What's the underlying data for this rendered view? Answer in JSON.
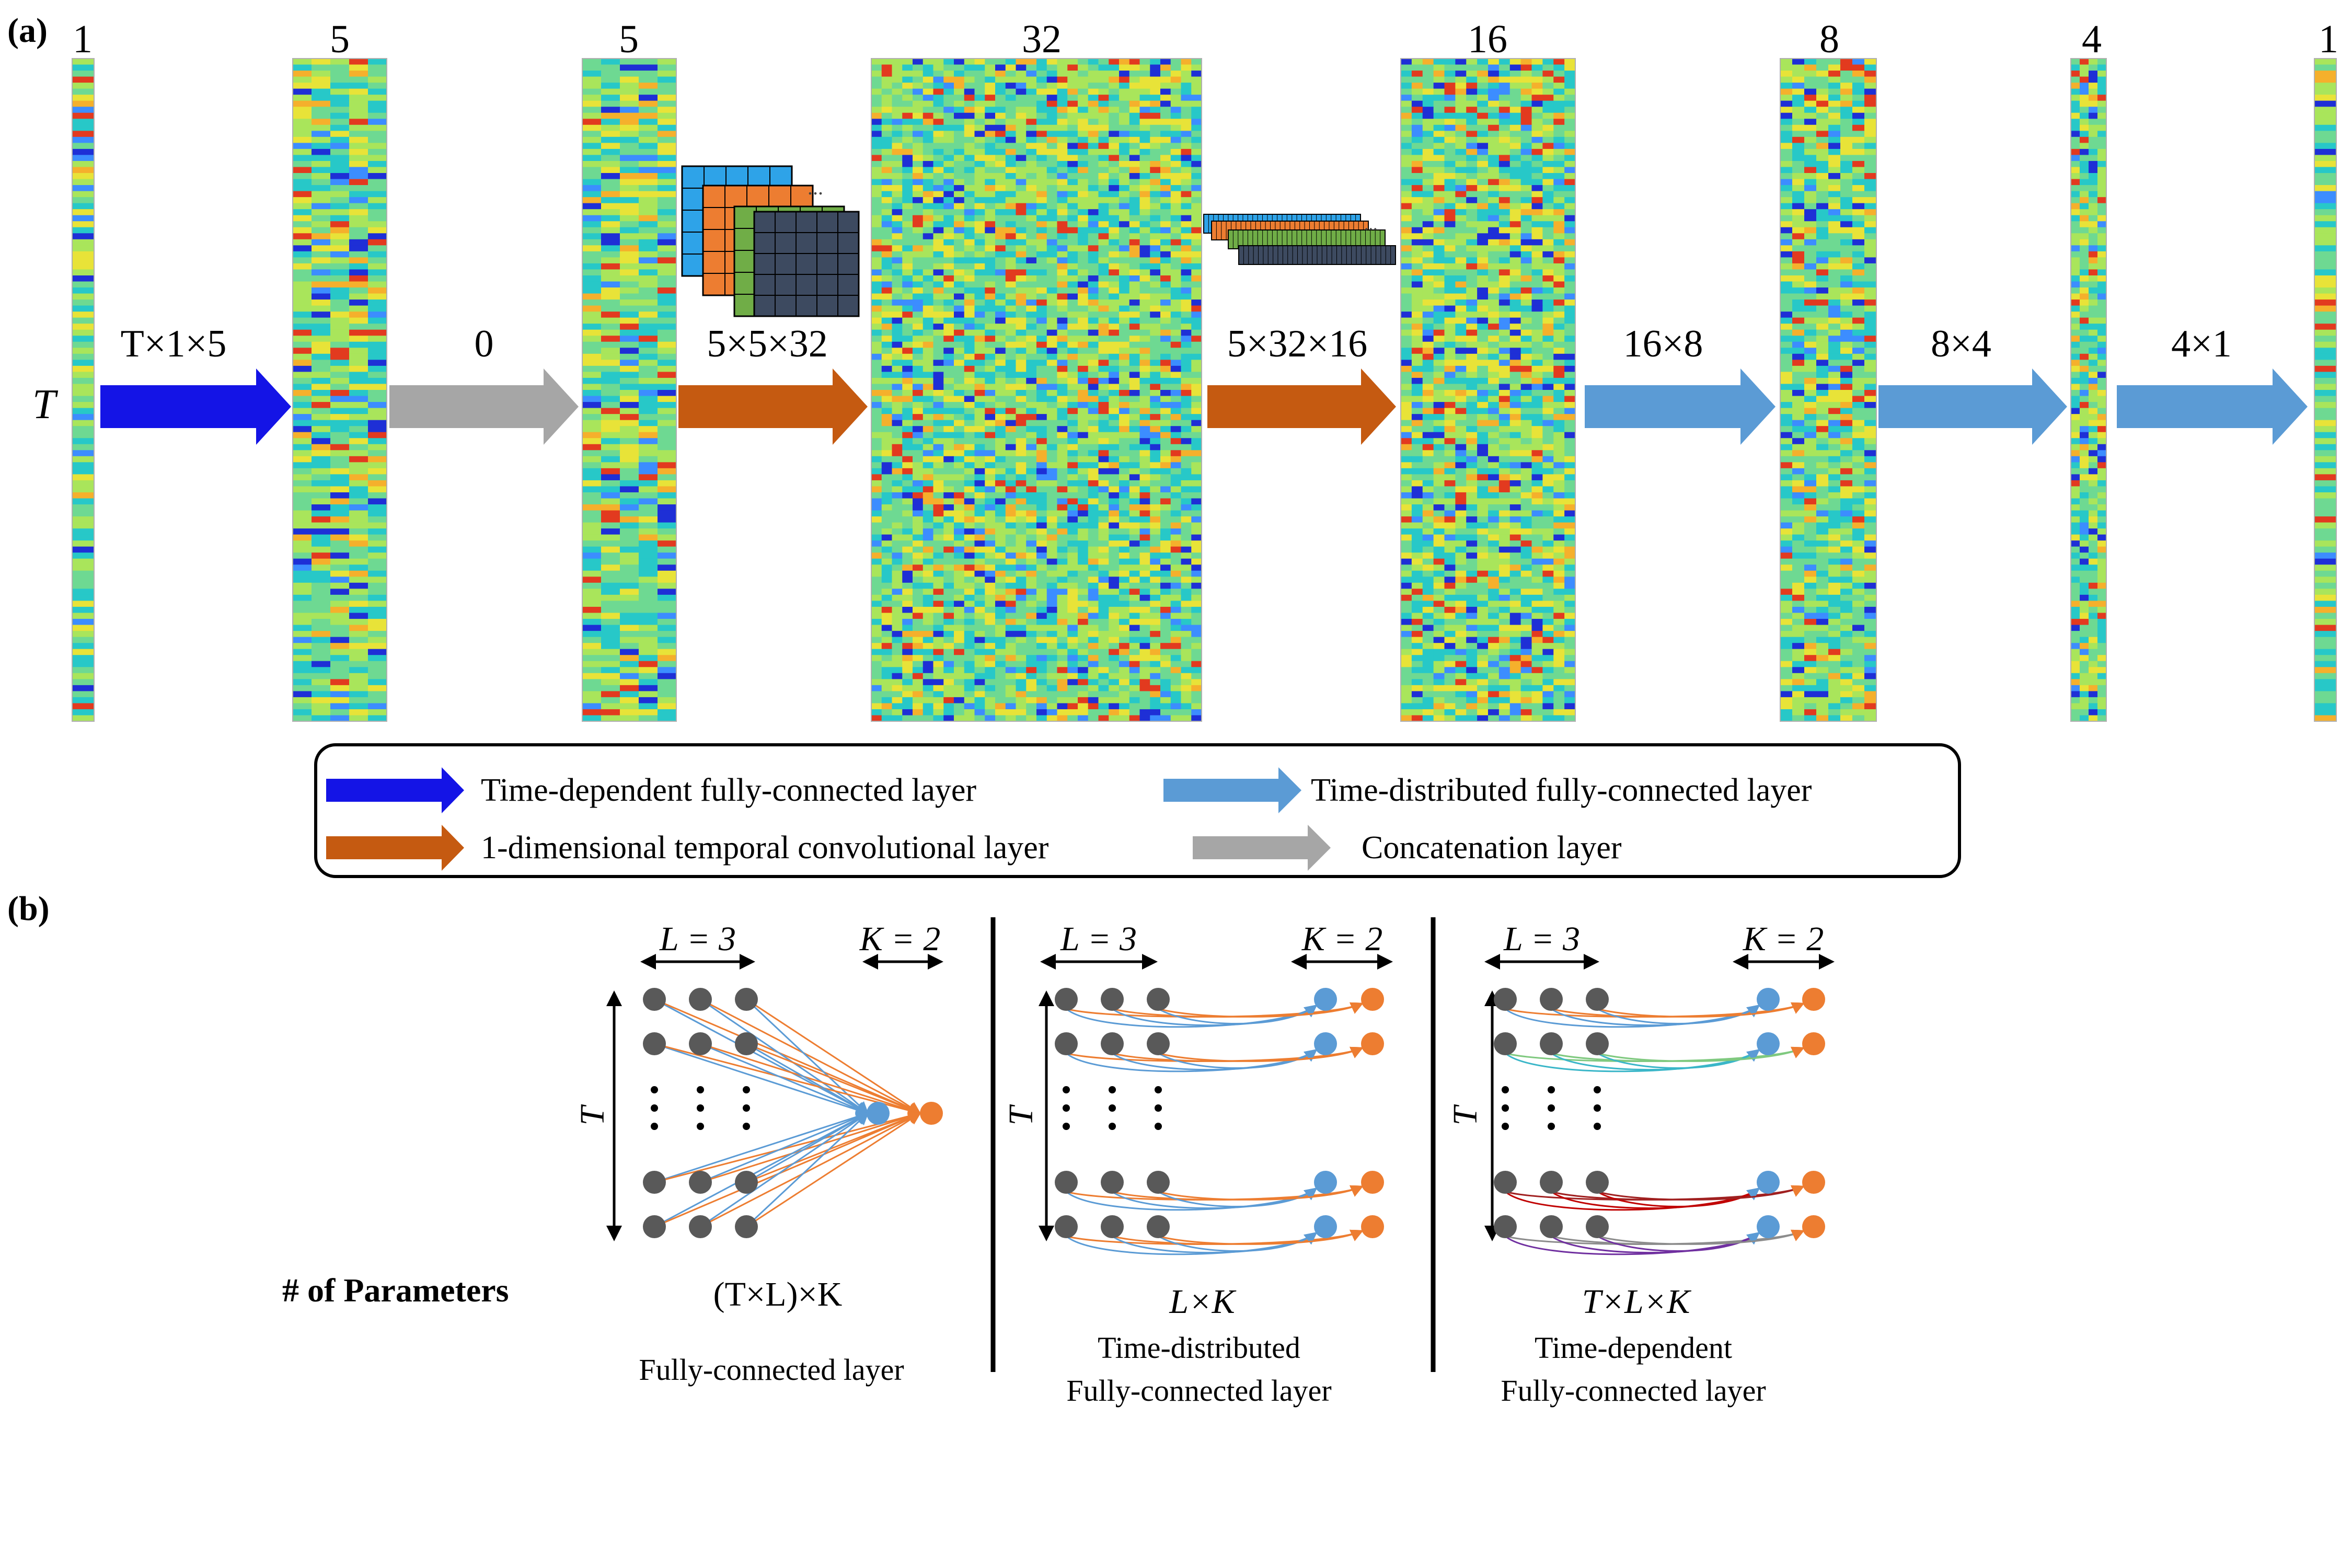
{
  "panel_a": {
    "tag": "(a)",
    "row_axis_label": "T",
    "columns": [
      {
        "id": "input",
        "width_label": "1"
      },
      {
        "id": "fc1",
        "width_label": "5"
      },
      {
        "id": "concat",
        "width_label": "5"
      },
      {
        "id": "conv1",
        "width_label": "32"
      },
      {
        "id": "conv2",
        "width_label": "16"
      },
      {
        "id": "td1",
        "width_label": "8"
      },
      {
        "id": "td2",
        "width_label": "4"
      },
      {
        "id": "output",
        "width_label": "1"
      }
    ],
    "arrows": [
      {
        "label": "T×1×5",
        "kind": "time_dependent"
      },
      {
        "label": "0",
        "kind": "concatenation"
      },
      {
        "label": "5×5×32",
        "kind": "conv"
      },
      {
        "label": "5×32×16",
        "kind": "conv"
      },
      {
        "label": "16×8",
        "kind": "time_distributed"
      },
      {
        "label": "8×4",
        "kind": "time_distributed"
      },
      {
        "label": "4×1",
        "kind": "time_distributed"
      }
    ],
    "legend": [
      {
        "label": "Time-dependent fully-connected layer",
        "kind": "time_dependent"
      },
      {
        "label": "Time-distributed fully-connected layer",
        "kind": "time_distributed"
      },
      {
        "label": "1-dimensional temporal convolutional layer",
        "kind": "conv"
      },
      {
        "label": "Concatenation layer",
        "kind": "concatenation"
      }
    ]
  },
  "panel_b": {
    "tag": "(b)",
    "params_label": "# of Parameters",
    "diagrams": [
      {
        "id": "fc",
        "L_label": "L = 3",
        "K_label": "K = 2",
        "T_label": "T",
        "formula": "(T×L)×K",
        "caption_lines": [
          "Fully-connected layer"
        ]
      },
      {
        "id": "td",
        "L_label": "L = 3",
        "K_label": "K = 2",
        "T_label": "T",
        "formula": "L×K",
        "caption_lines": [
          "Time-distributed",
          "Fully-connected layer"
        ]
      },
      {
        "id": "tdep",
        "L_label": "L = 3",
        "K_label": "K = 2",
        "T_label": "T",
        "formula": "T×L×K",
        "caption_lines": [
          "Time-dependent",
          "Fully-connected layer"
        ]
      }
    ]
  },
  "colors": {
    "time_dependent": "#1414e6",
    "time_distributed": "#5b9bd5",
    "conv": "#c55a11",
    "concatenation": "#a6a6a6",
    "node_gray": "#595959",
    "node_blue": "#5b9bd5",
    "node_orange": "#ed7d31"
  }
}
